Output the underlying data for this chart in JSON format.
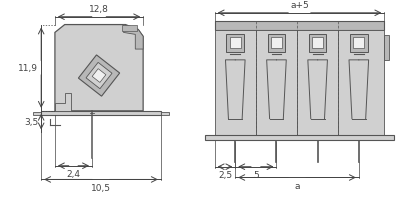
{
  "bg_color": "#ffffff",
  "lc": "#555555",
  "dc": "#444444",
  "fill_light": "#d0d0d0",
  "fill_mid": "#b8b8b8",
  "fill_dark": "#999999",
  "fill_white": "#f0f0f0",
  "labels": {
    "dim_128": "12,8",
    "dim_119": "11,9",
    "dim_35": "3,5",
    "dim_24": "2,4",
    "dim_105": "10,5",
    "dim_a5": "a+5",
    "dim_5": "5",
    "dim_25": "2,5",
    "dim_a": "a"
  },
  "fontsize": 6.5
}
